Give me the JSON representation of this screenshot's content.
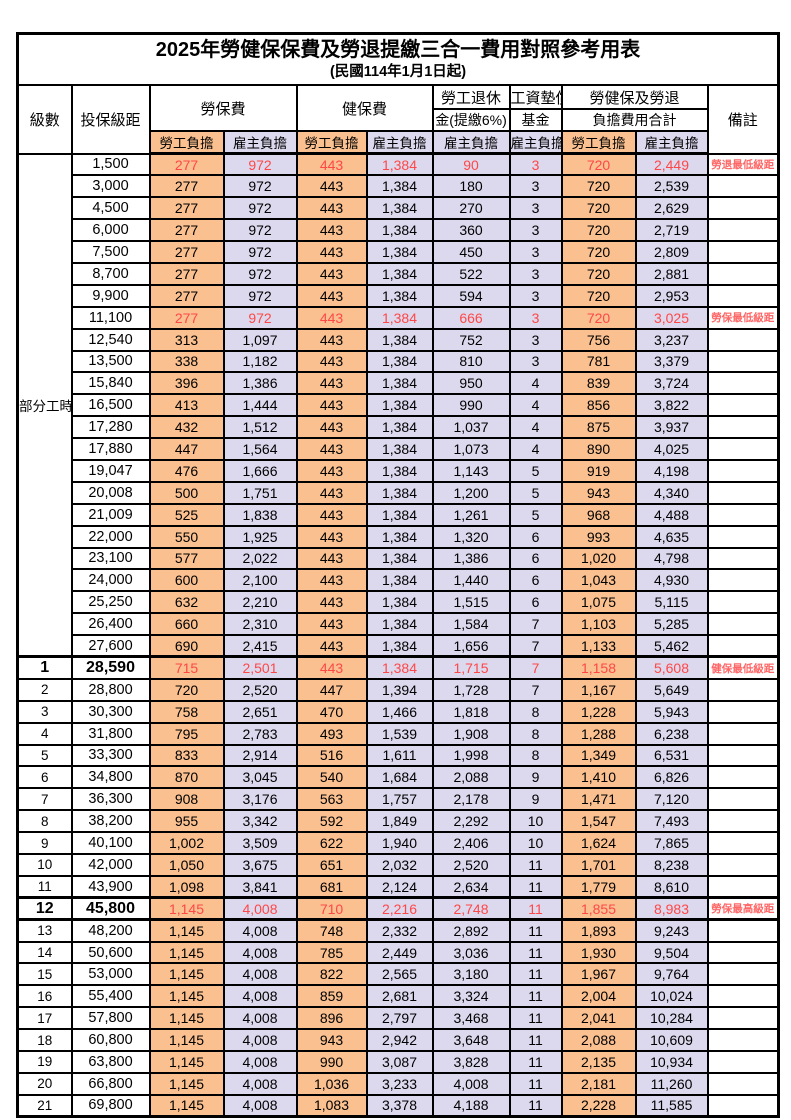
{
  "title": "2025年勞健保保費及勞退提繳三合一費用對照參考用表",
  "subtitle": "(民國114年1月1日起)",
  "header": {
    "level": "級數",
    "salary_bracket": "投保級距",
    "labor_insurance": "勞保費",
    "health_insurance": "健保費",
    "pension_line1": "勞工退休",
    "pension_line2": "金(提繳6%)",
    "wage_arrears_line1": "工資墊償",
    "wage_arrears_line2": "基金",
    "total_line1": "勞健保及勞退",
    "total_line2": "負擔費用合計",
    "remark": "備註",
    "employee_label": "勞工負擔",
    "employer_label": "雇主負擔"
  },
  "part_time": {
    "label": "部分工時",
    "rowspan": 23
  },
  "colors": {
    "employee_fill": "#FAC090",
    "employer_fill": "#DCD9EE",
    "highlight_text": "#FF4747",
    "remark_text": "#FF6666"
  },
  "rows": [
    {
      "lv": "",
      "b": "1,500",
      "v": [
        "277",
        "972",
        "443",
        "1,384",
        "90",
        "3",
        "720",
        "2,449"
      ],
      "note": "勞退最低級距"
    },
    {
      "lv": "",
      "b": "3,000",
      "v": [
        "277",
        "972",
        "443",
        "1,384",
        "180",
        "3",
        "720",
        "2,539"
      ],
      "note": ""
    },
    {
      "lv": "",
      "b": "4,500",
      "v": [
        "277",
        "972",
        "443",
        "1,384",
        "270",
        "3",
        "720",
        "2,629"
      ],
      "note": ""
    },
    {
      "lv": "",
      "b": "6,000",
      "v": [
        "277",
        "972",
        "443",
        "1,384",
        "360",
        "3",
        "720",
        "2,719"
      ],
      "note": ""
    },
    {
      "lv": "",
      "b": "7,500",
      "v": [
        "277",
        "972",
        "443",
        "1,384",
        "450",
        "3",
        "720",
        "2,809"
      ],
      "note": ""
    },
    {
      "lv": "",
      "b": "8,700",
      "v": [
        "277",
        "972",
        "443",
        "1,384",
        "522",
        "3",
        "720",
        "2,881"
      ],
      "note": ""
    },
    {
      "lv": "",
      "b": "9,900",
      "v": [
        "277",
        "972",
        "443",
        "1,384",
        "594",
        "3",
        "720",
        "2,953"
      ],
      "note": ""
    },
    {
      "lv": "",
      "b": "11,100",
      "v": [
        "277",
        "972",
        "443",
        "1,384",
        "666",
        "3",
        "720",
        "3,025"
      ],
      "note": "勞保最低級距"
    },
    {
      "lv": "",
      "b": "12,540",
      "v": [
        "313",
        "1,097",
        "443",
        "1,384",
        "752",
        "3",
        "756",
        "3,237"
      ],
      "note": ""
    },
    {
      "lv": "",
      "b": "13,500",
      "v": [
        "338",
        "1,182",
        "443",
        "1,384",
        "810",
        "3",
        "781",
        "3,379"
      ],
      "note": ""
    },
    {
      "lv": "",
      "b": "15,840",
      "v": [
        "396",
        "1,386",
        "443",
        "1,384",
        "950",
        "4",
        "839",
        "3,724"
      ],
      "note": ""
    },
    {
      "lv": "",
      "b": "16,500",
      "v": [
        "413",
        "1,444",
        "443",
        "1,384",
        "990",
        "4",
        "856",
        "3,822"
      ],
      "note": ""
    },
    {
      "lv": "",
      "b": "17,280",
      "v": [
        "432",
        "1,512",
        "443",
        "1,384",
        "1,037",
        "4",
        "875",
        "3,937"
      ],
      "note": ""
    },
    {
      "lv": "",
      "b": "17,880",
      "v": [
        "447",
        "1,564",
        "443",
        "1,384",
        "1,073",
        "4",
        "890",
        "4,025"
      ],
      "note": ""
    },
    {
      "lv": "",
      "b": "19,047",
      "v": [
        "476",
        "1,666",
        "443",
        "1,384",
        "1,143",
        "5",
        "919",
        "4,198"
      ],
      "note": ""
    },
    {
      "lv": "",
      "b": "20,008",
      "v": [
        "500",
        "1,751",
        "443",
        "1,384",
        "1,200",
        "5",
        "943",
        "4,340"
      ],
      "note": ""
    },
    {
      "lv": "",
      "b": "21,009",
      "v": [
        "525",
        "1,838",
        "443",
        "1,384",
        "1,261",
        "5",
        "968",
        "4,488"
      ],
      "note": ""
    },
    {
      "lv": "",
      "b": "22,000",
      "v": [
        "550",
        "1,925",
        "443",
        "1,384",
        "1,320",
        "6",
        "993",
        "4,635"
      ],
      "note": ""
    },
    {
      "lv": "",
      "b": "23,100",
      "v": [
        "577",
        "2,022",
        "443",
        "1,384",
        "1,386",
        "6",
        "1,020",
        "4,798"
      ],
      "note": ""
    },
    {
      "lv": "",
      "b": "24,000",
      "v": [
        "600",
        "2,100",
        "443",
        "1,384",
        "1,440",
        "6",
        "1,043",
        "4,930"
      ],
      "note": ""
    },
    {
      "lv": "",
      "b": "25,250",
      "v": [
        "632",
        "2,210",
        "443",
        "1,384",
        "1,515",
        "6",
        "1,075",
        "5,115"
      ],
      "note": ""
    },
    {
      "lv": "",
      "b": "26,400",
      "v": [
        "660",
        "2,310",
        "443",
        "1,384",
        "1,584",
        "7",
        "1,103",
        "5,285"
      ],
      "note": ""
    },
    {
      "lv": "",
      "b": "27,600",
      "v": [
        "690",
        "2,415",
        "443",
        "1,384",
        "1,656",
        "7",
        "1,133",
        "5,462"
      ],
      "note": ""
    },
    {
      "lv": "1",
      "b": "28,590",
      "v": [
        "715",
        "2,501",
        "443",
        "1,384",
        "1,715",
        "7",
        "1,158",
        "5,608"
      ],
      "note": "健保最低級距"
    },
    {
      "lv": "2",
      "b": "28,800",
      "v": [
        "720",
        "2,520",
        "447",
        "1,394",
        "1,728",
        "7",
        "1,167",
        "5,649"
      ],
      "note": ""
    },
    {
      "lv": "3",
      "b": "30,300",
      "v": [
        "758",
        "2,651",
        "470",
        "1,466",
        "1,818",
        "8",
        "1,228",
        "5,943"
      ],
      "note": ""
    },
    {
      "lv": "4",
      "b": "31,800",
      "v": [
        "795",
        "2,783",
        "493",
        "1,539",
        "1,908",
        "8",
        "1,288",
        "6,238"
      ],
      "note": ""
    },
    {
      "lv": "5",
      "b": "33,300",
      "v": [
        "833",
        "2,914",
        "516",
        "1,611",
        "1,998",
        "8",
        "1,349",
        "6,531"
      ],
      "note": ""
    },
    {
      "lv": "6",
      "b": "34,800",
      "v": [
        "870",
        "3,045",
        "540",
        "1,684",
        "2,088",
        "9",
        "1,410",
        "6,826"
      ],
      "note": ""
    },
    {
      "lv": "7",
      "b": "36,300",
      "v": [
        "908",
        "3,176",
        "563",
        "1,757",
        "2,178",
        "9",
        "1,471",
        "7,120"
      ],
      "note": ""
    },
    {
      "lv": "8",
      "b": "38,200",
      "v": [
        "955",
        "3,342",
        "592",
        "1,849",
        "2,292",
        "10",
        "1,547",
        "7,493"
      ],
      "note": ""
    },
    {
      "lv": "9",
      "b": "40,100",
      "v": [
        "1,002",
        "3,509",
        "622",
        "1,940",
        "2,406",
        "10",
        "1,624",
        "7,865"
      ],
      "note": ""
    },
    {
      "lv": "10",
      "b": "42,000",
      "v": [
        "1,050",
        "3,675",
        "651",
        "2,032",
        "2,520",
        "11",
        "1,701",
        "8,238"
      ],
      "note": ""
    },
    {
      "lv": "11",
      "b": "43,900",
      "v": [
        "1,098",
        "3,841",
        "681",
        "2,124",
        "2,634",
        "11",
        "1,779",
        "8,610"
      ],
      "note": ""
    },
    {
      "lv": "12",
      "b": "45,800",
      "v": [
        "1,145",
        "4,008",
        "710",
        "2,216",
        "2,748",
        "11",
        "1,855",
        "8,983"
      ],
      "note": "勞保最高級距"
    },
    {
      "lv": "13",
      "b": "48,200",
      "v": [
        "1,145",
        "4,008",
        "748",
        "2,332",
        "2,892",
        "11",
        "1,893",
        "9,243"
      ],
      "note": ""
    },
    {
      "lv": "14",
      "b": "50,600",
      "v": [
        "1,145",
        "4,008",
        "785",
        "2,449",
        "3,036",
        "11",
        "1,930",
        "9,504"
      ],
      "note": ""
    },
    {
      "lv": "15",
      "b": "53,000",
      "v": [
        "1,145",
        "4,008",
        "822",
        "2,565",
        "3,180",
        "11",
        "1,967",
        "9,764"
      ],
      "note": ""
    },
    {
      "lv": "16",
      "b": "55,400",
      "v": [
        "1,145",
        "4,008",
        "859",
        "2,681",
        "3,324",
        "11",
        "2,004",
        "10,024"
      ],
      "note": ""
    },
    {
      "lv": "17",
      "b": "57,800",
      "v": [
        "1,145",
        "4,008",
        "896",
        "2,797",
        "3,468",
        "11",
        "2,041",
        "10,284"
      ],
      "note": ""
    },
    {
      "lv": "18",
      "b": "60,800",
      "v": [
        "1,145",
        "4,008",
        "943",
        "2,942",
        "3,648",
        "11",
        "2,088",
        "10,609"
      ],
      "note": ""
    },
    {
      "lv": "19",
      "b": "63,800",
      "v": [
        "1,145",
        "4,008",
        "990",
        "3,087",
        "3,828",
        "11",
        "2,135",
        "10,934"
      ],
      "note": ""
    },
    {
      "lv": "20",
      "b": "66,800",
      "v": [
        "1,145",
        "4,008",
        "1,036",
        "3,233",
        "4,008",
        "11",
        "2,181",
        "11,260"
      ],
      "note": ""
    },
    {
      "lv": "21",
      "b": "69,800",
      "v": [
        "1,145",
        "4,008",
        "1,083",
        "3,378",
        "4,188",
        "11",
        "2,228",
        "11,585"
      ],
      "note": ""
    }
  ],
  "red_row_indices": [
    0,
    7,
    23,
    34
  ],
  "bold_row_indices": [
    23,
    34
  ],
  "thick_top_indices": [
    23,
    34,
    35
  ]
}
